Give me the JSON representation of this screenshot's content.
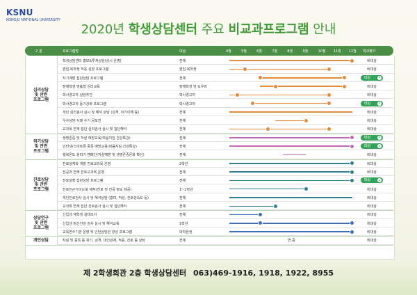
{
  "logo": {
    "brand": "KSNU",
    "sub": "KONGJU NATIONAL UNIVERSITY"
  },
  "title": {
    "year": "2020년",
    "bold1": "학생상담센터",
    "mid": "주요",
    "bold2": "비교과프로그램",
    "end": "안내"
  },
  "header": {
    "category": "구 분",
    "program": "프로그램명",
    "target": "대상",
    "months": [
      "4월",
      "5월",
      "6월",
      "7월",
      "8월",
      "9월",
      "10월",
      "11월",
      "12월"
    ],
    "evaluation": "학과평가"
  },
  "colors": {
    "green": "#4b8f47",
    "orange": "#e38a3a",
    "purple": "#c568b4",
    "teal": "#2f7f8c",
    "blue": "#3f6fb8",
    "badge": "#34a35a"
  },
  "groups": [
    {
      "category": "심리상담\n및 관련\n프로그램",
      "rows": [
        {
          "name": "학생상담센터 홍보&투게상담(상시 운영)",
          "target": "전체",
          "color": "orange",
          "start": 0,
          "end": 8,
          "dots": [
            8
          ],
          "eval": "비대상"
        },
        {
          "name": "편입·복학생 적응 성장 프로그램",
          "target": "편입·복학생",
          "color": "orange",
          "start": 0,
          "end": 6.5,
          "dots": [
            1,
            6.5
          ],
          "eval": "비대상"
        },
        {
          "name": "자기계발 집단상담 프로그램",
          "target": "전체",
          "color": "orange",
          "start": 2,
          "end": 7.5,
          "dots": [
            2,
            7.5
          ],
          "eval": "대상"
        },
        {
          "name": "장애학생 맞춤형 심리교육",
          "target": "장애학생 및 도우미",
          "color": "orange",
          "start": 2,
          "end": 7.5,
          "dots": [
            3,
            7.5
          ],
          "eval": "비대상"
        },
        {
          "name": "학사경고자 상담주간",
          "target": "학사경고자",
          "color": "orange",
          "start": 0,
          "end": 6.5,
          "dots": [
            0.5,
            6.5
          ],
          "eval": "비대상"
        },
        {
          "name": "학사경고자 동기강화 프로그램",
          "target": "학사경고자",
          "color": "orange",
          "start": 1.5,
          "end": 6.5,
          "dots": [
            1.5,
            6.5
          ],
          "eval": "대상"
        },
        {
          "name": "개인 심리검사 실시 및 해석 상담 (성격, 자기이해 등)",
          "target": "전체",
          "color": "orange",
          "start": 0,
          "end": 8,
          "dots": [],
          "eval": "비대상"
        },
        {
          "name": "우수상담 사례 수기 공모전",
          "target": "전체",
          "color": "orange",
          "start": 3,
          "end": 5,
          "dots": [
            5
          ],
          "eval": "비대상"
        },
        {
          "name": "교과목 연계 집단 심리검사 실시 및 집단해석",
          "target": "전체",
          "color": "orange",
          "start": 0,
          "end": 6.5,
          "dots": [
            2.5,
            6.5
          ],
          "eval": "비대상"
        }
      ]
    },
    {
      "category": "위기상담\n및 관련\n프로그램",
      "rows": [
        {
          "name": "생명존중 및 자살 예방교육(마음지킴 건강특강)",
          "target": "전체",
          "color": "purple",
          "start": 0,
          "end": 8,
          "dots": [
            8
          ],
          "eval": "대상"
        },
        {
          "name": "인터넷/스마트폰 중독 예방교육(마음지킴 건강특강)",
          "target": "전체",
          "color": "purple",
          "start": 0,
          "end": 8,
          "dots": [
            8
          ],
          "eval": "대상"
        },
        {
          "name": "행복온도 올리기 캠페인(자살예방 및 생명존중문화 확산)",
          "target": "전체",
          "color": "purple",
          "start": 3.5,
          "end": 5,
          "dots": [],
          "eval": "비대상"
        }
      ]
    },
    {
      "category": "진로상담\n및 관련\n프로그램",
      "rows": [
        {
          "name": "진로설계와 개발 진로교과목 운영",
          "target": "2학년",
          "color": "teal",
          "start": 0,
          "end": 8,
          "dots": [
            8
          ],
          "eval": "비대상"
        },
        {
          "name": "전공과 연계 진로교과목 운영",
          "target": "전체",
          "color": "teal",
          "start": 0,
          "end": 8,
          "dots": [
            8
          ],
          "eval": "비대상"
        },
        {
          "name": "진로설정 집단상담 프로그램",
          "target": "전체",
          "color": "teal",
          "start": 0,
          "end": 8,
          "dots": [
            8
          ],
          "eval": "대상"
        },
        {
          "name": "진로진곤가이드북 제작(진로 및 전공 정보 제공)",
          "target": "1~2학년",
          "color": "teal",
          "start": 0,
          "end": 5,
          "dots": [
            5
          ],
          "eval": "비대상"
        },
        {
          "name": "개인진로검사 실시 및 해석상담 (흥미, 적성, 진로성숙도 등)",
          "target": "전체",
          "color": "teal",
          "start": 0,
          "end": 8,
          "dots": [],
          "eval": "비대상"
        },
        {
          "name": "교과목 연계 집단 진로검사 실시 및 집단해석",
          "target": "전체",
          "color": "teal",
          "start": 0,
          "end": 3,
          "dots": [
            3
          ],
          "eval": "비대상"
        }
      ]
    },
    {
      "category": "상담연구\n및 관련\n프로그램",
      "rows": [
        {
          "name": "신입생 재학생 실태조사",
          "target": "전체",
          "color": "blue",
          "start": 0,
          "end": 2,
          "dots": [
            2
          ],
          "eval": "비대상"
        },
        {
          "name": "신입생 정신건강 검사 실시 및 해석교육",
          "target": "1학년",
          "color": "blue",
          "start": 0,
          "end": 8,
          "dots": [
            2,
            8
          ],
          "eval": "비대상"
        },
        {
          "name": "교육연수기관 운영 및 인턴상담원 양성 프로그램",
          "target": "대학원생",
          "color": "blue",
          "start": 0,
          "end": 8,
          "dots": [
            8
          ],
          "eval": "비대상"
        }
      ]
    },
    {
      "category": "개인상담",
      "rows": [
        {
          "name": "자살 및 중독 등 위기, 성격, 대인관계, 적응, 진로 등 상담",
          "target": "전체",
          "color": "none",
          "yearround": "연 중",
          "eval": "비대상"
        }
      ]
    }
  ],
  "footer": {
    "place": "제 2학생회관 2층 학생상담센터",
    "phone": "063)469-1916, 1918, 1922, 8955"
  }
}
